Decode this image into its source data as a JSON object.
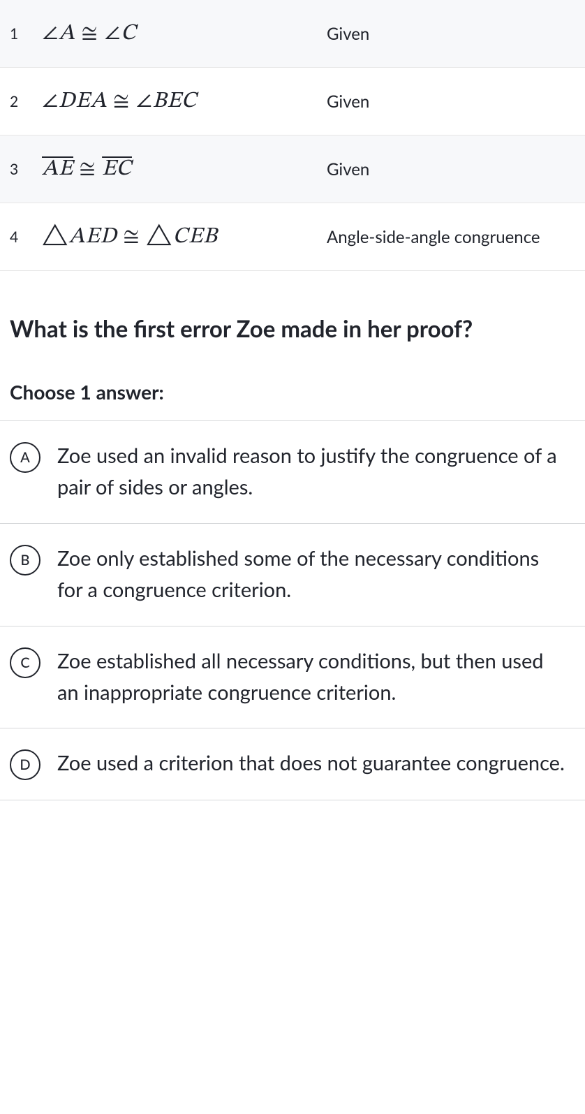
{
  "proof": {
    "rows": [
      {
        "num": "1",
        "statement_html": "<span class='sym'>∠</span>A <span class='sym'>≅</span> <span class='sym'>∠</span>C",
        "reason": "Given",
        "shaded": true
      },
      {
        "num": "2",
        "statement_html": "<span class='sym'>∠</span>DEA <span class='sym'>≅</span> <span class='sym'>∠</span>BEC",
        "reason": "Given",
        "shaded": false
      },
      {
        "num": "3",
        "statement_html": "<span class='overline'>AE</span> <span class='sym'>≅</span> <span class='overline'>EC</span>",
        "reason": "Given",
        "shaded": true
      },
      {
        "num": "4",
        "statement_html": "<span class='sym'>△</span>AED <span class='sym'>≅</span> <span class='sym'>△</span>CEB",
        "reason": "Angle-side-angle congruence",
        "shaded": false
      }
    ]
  },
  "question": "What is the first error Zoe made in her proof?",
  "choose_label": "Choose 1 answer:",
  "answers": [
    {
      "letter": "A",
      "text": "Zoe used an invalid reason to justify the congruence of a pair of sides or angles."
    },
    {
      "letter": "B",
      "text": "Zoe only established some of the necessary conditions for a congruence criterion."
    },
    {
      "letter": "C",
      "text": "Zoe established all necessary conditions, but then used an inappropriate congruence criterion."
    },
    {
      "letter": "D",
      "text": "Zoe used a criterion that does not guarantee congruence."
    }
  ],
  "colors": {
    "shaded_bg": "#f7f8fa",
    "border": "#d6d8da",
    "text": "#21242c"
  }
}
